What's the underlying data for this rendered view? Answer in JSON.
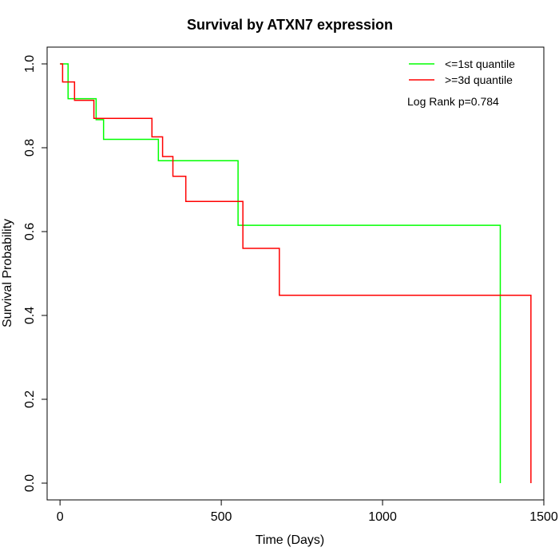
{
  "chart_data": {
    "type": "line",
    "title": "Survival by ATXN7 expression",
    "xlabel": "Time (Days)",
    "ylabel": "Survival Probability",
    "xlim": [
      -40,
      1500
    ],
    "ylim": [
      -0.04,
      1.04
    ],
    "x_ticks": [
      0,
      500,
      1000,
      1500
    ],
    "x_tick_labels": [
      "0",
      "500",
      "1000",
      "1500"
    ],
    "y_ticks": [
      0.0,
      0.2,
      0.4,
      0.6,
      0.8,
      1.0
    ],
    "y_tick_labels": [
      "0.0",
      "0.2",
      "0.4",
      "0.6",
      "0.8",
      "1.0"
    ],
    "grid": false,
    "legend_position": "top-right",
    "annotation": "Log Rank p=0.784",
    "series": [
      {
        "name": "<=1st quantile",
        "color": "#00ff00",
        "steps": [
          [
            0,
            1.0
          ],
          [
            25,
            0.917
          ],
          [
            112,
            0.867
          ],
          [
            135,
            0.82
          ],
          [
            305,
            0.769
          ],
          [
            552,
            0.615
          ],
          [
            1365,
            0.0
          ]
        ]
      },
      {
        "name": ">=3d quantile",
        "color": "#ff0000",
        "steps": [
          [
            0,
            1.0
          ],
          [
            8,
            0.957
          ],
          [
            45,
            0.913
          ],
          [
            105,
            0.87
          ],
          [
            285,
            0.826
          ],
          [
            318,
            0.779
          ],
          [
            350,
            0.732
          ],
          [
            390,
            0.672
          ],
          [
            567,
            0.56
          ],
          [
            680,
            0.448
          ],
          [
            1460,
            0.0
          ]
        ]
      }
    ]
  }
}
